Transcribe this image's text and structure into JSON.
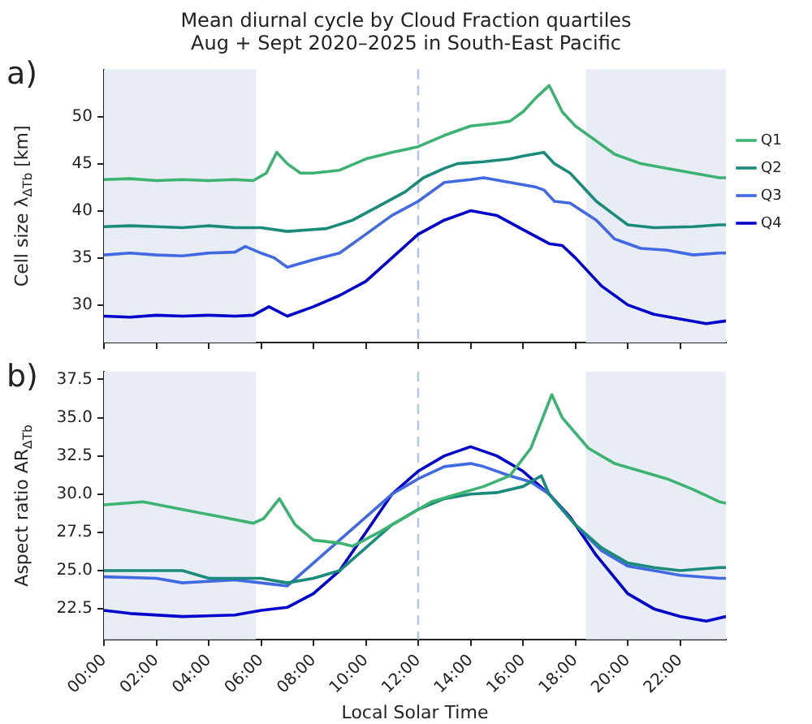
{
  "chart_data": [
    {
      "type": "line",
      "title": "Mean diurnal cycle by Cloud Fraction quartiles",
      "subtitle": "Aug + Sept 2020–2025 in South-East Pacific",
      "ylabel": "Cell size λ$_{ΔTb}$ [km]",
      "annotations": [
        "a)"
      ],
      "xlim": [
        0,
        23.75
      ],
      "xticks": [
        {
          "value": 0,
          "label": null
        },
        {
          "value": 2,
          "label": null
        },
        {
          "value": 4,
          "label": null
        },
        {
          "value": 6,
          "label": null
        },
        {
          "value": 8,
          "label": null
        },
        {
          "value": 10,
          "label": null
        },
        {
          "value": 12,
          "label": null
        },
        {
          "value": 14,
          "label": null
        },
        {
          "value": 16,
          "label": null
        },
        {
          "value": 18,
          "label": null
        },
        {
          "value": 20,
          "label": null
        },
        {
          "value": 22,
          "label": null
        }
      ],
      "ylim": [
        26,
        55
      ],
      "yticks": [
        30,
        35,
        40,
        45,
        50
      ],
      "tick_labels": "y",
      "grid": false,
      "legend": "right",
      "marker": "none",
      "line_style": "solid",
      "bands": [
        {
          "axis": "x",
          "from": 0,
          "to": 5.8,
          "color": "#e8edf5"
        },
        {
          "axis": "x",
          "from": 18.4,
          "to": 23.75,
          "color": "#e8edf5"
        }
      ],
      "ref_lines": [
        {
          "axis": "x",
          "value": 12,
          "color": "#b0c4e8",
          "line_style": "dashed"
        }
      ],
      "series": [
        {
          "name": "Q1",
          "color": "#3cb371",
          "x": [
            0,
            1,
            2,
            3,
            4,
            5,
            5.7,
            6.2,
            6.6,
            7,
            7.5,
            8,
            9,
            10,
            11,
            12,
            13,
            14,
            15,
            15.5,
            16,
            16.5,
            17,
            17.5,
            18,
            18.5,
            19.5,
            20.5,
            21.5,
            22.5,
            23.5,
            23.75
          ],
          "values": [
            43.3,
            43.4,
            43.2,
            43.3,
            43.2,
            43.3,
            43.2,
            44,
            46.2,
            45,
            44,
            44,
            44.3,
            45.5,
            46.2,
            46.8,
            48,
            49,
            49.3,
            49.5,
            50.5,
            52,
            53.3,
            50.5,
            49,
            48,
            46,
            45,
            44.5,
            44,
            43.5,
            43.5
          ]
        },
        {
          "name": "Q2",
          "color": "#1a8a7a",
          "x": [
            0,
            1,
            2,
            3,
            4,
            5,
            6,
            7,
            8,
            8.5,
            9.5,
            10.5,
            11.5,
            12.2,
            13,
            13.5,
            14.5,
            15.5,
            16,
            16.8,
            17.2,
            17.8,
            18.8,
            20,
            21,
            22.5,
            23.5,
            23.75
          ],
          "values": [
            38.3,
            38.4,
            38.3,
            38.2,
            38.4,
            38.2,
            38.2,
            37.8,
            38,
            38.1,
            39,
            40.5,
            42,
            43.5,
            44.5,
            45,
            45.2,
            45.5,
            45.8,
            46.2,
            45,
            44,
            41,
            38.5,
            38.2,
            38.3,
            38.5,
            38.5
          ]
        },
        {
          "name": "Q3",
          "color": "#4169e1",
          "x": [
            0,
            1,
            2,
            3,
            4,
            5,
            5.4,
            6,
            6.5,
            7,
            8,
            9,
            10,
            11,
            12,
            13,
            14,
            14.5,
            15.5,
            16.5,
            16.8,
            17.2,
            17.8,
            18.8,
            19.5,
            20.5,
            21.5,
            22.5,
            23.5,
            23.75
          ],
          "values": [
            35.3,
            35.5,
            35.3,
            35.2,
            35.5,
            35.6,
            36.2,
            35.5,
            35,
            34,
            34.8,
            35.5,
            37.5,
            39.5,
            41,
            43,
            43.3,
            43.5,
            43,
            42.5,
            42.2,
            41,
            40.8,
            39,
            37,
            36,
            35.8,
            35.3,
            35.5,
            35.5
          ]
        },
        {
          "name": "Q4",
          "color": "#0000cd",
          "x": [
            0,
            1,
            2,
            3,
            4,
            5,
            5.7,
            6.3,
            7,
            8,
            9,
            10,
            11,
            12,
            13,
            14,
            15,
            16,
            17,
            17.5,
            18,
            19,
            20,
            21,
            22,
            23,
            23.75
          ],
          "values": [
            28.8,
            28.7,
            28.9,
            28.8,
            28.9,
            28.8,
            28.9,
            29.8,
            28.8,
            29.8,
            31,
            32.5,
            35,
            37.5,
            39,
            40,
            39.5,
            38,
            36.5,
            36.3,
            35,
            32,
            30,
            29,
            28.5,
            28,
            28.3
          ]
        }
      ]
    },
    {
      "type": "line",
      "ylabel": "Aspect ratio AR$_{ΔTb}$",
      "xlabel": "Local Solar Time",
      "annotations": [
        "b)"
      ],
      "xlim": [
        0,
        23.75
      ],
      "xticks": [
        {
          "value": 0,
          "label": "00:00"
        },
        {
          "value": 2,
          "label": "02:00"
        },
        {
          "value": 4,
          "label": "04:00"
        },
        {
          "value": 6,
          "label": "06:00"
        },
        {
          "value": 8,
          "label": "08:00"
        },
        {
          "value": 10,
          "label": "10:00"
        },
        {
          "value": 12,
          "label": "12:00"
        },
        {
          "value": 14,
          "label": "14:00"
        },
        {
          "value": 16,
          "label": "16:00"
        },
        {
          "value": 18,
          "label": "18:00"
        },
        {
          "value": 20,
          "label": "20:00"
        },
        {
          "value": 22,
          "label": "22:00"
        }
      ],
      "ylim": [
        20.5,
        38
      ],
      "yticks": [
        22.5,
        {
          "value": 25,
          "label": "25.0"
        },
        27.5,
        {
          "value": 30,
          "label": "30.0"
        },
        32.5,
        {
          "value": 35,
          "label": "35.0"
        },
        37.5
      ],
      "grid": false,
      "marker": "none",
      "line_style": "solid",
      "bands": [
        {
          "axis": "x",
          "from": 0,
          "to": 5.8,
          "color": "#e8edf5"
        },
        {
          "axis": "x",
          "from": 18.4,
          "to": 23.75,
          "color": "#e8edf5"
        }
      ],
      "ref_lines": [
        {
          "axis": "x",
          "value": 12,
          "color": "#b0c4e8",
          "line_style": "dashed"
        }
      ],
      "series": [
        {
          "color": "#3cb371",
          "x": [
            0,
            1.5,
            3,
            4.5,
            5.7,
            6.1,
            6.7,
            7.3,
            8,
            9,
            9.5,
            10.5,
            11.5,
            12.5,
            13.5,
            14.5,
            15.5,
            16.3,
            17.1,
            17.5,
            18.5,
            19.5,
            20.5,
            21.5,
            22.5,
            23.5,
            23.75
          ],
          "values": [
            29.3,
            29.5,
            29,
            28.5,
            28.1,
            28.4,
            29.7,
            28,
            27,
            26.8,
            26.6,
            27.5,
            28.5,
            29.5,
            30,
            30.5,
            31.2,
            33,
            36.5,
            35,
            33,
            32,
            31.5,
            31,
            30.3,
            29.5,
            29.4
          ]
        },
        {
          "color": "#1a8a7a",
          "x": [
            0,
            3,
            4,
            6,
            7,
            8,
            9,
            10,
            11,
            12,
            13,
            14,
            15,
            16,
            16.7,
            17,
            18,
            19,
            20,
            21,
            22,
            23.5,
            23.75
          ],
          "values": [
            25,
            25,
            24.5,
            24.5,
            24.2,
            24.5,
            25,
            26.5,
            28,
            29,
            29.7,
            30,
            30.1,
            30.5,
            31.2,
            30,
            28,
            26.5,
            25.5,
            25.2,
            25,
            25.2,
            25.2
          ]
        },
        {
          "color": "#4169e1",
          "x": [
            0,
            2,
            3,
            5,
            6,
            7,
            8,
            9,
            10,
            11,
            12,
            13,
            14,
            14.5,
            15.5,
            16.3,
            17,
            18,
            19,
            20,
            21,
            22,
            23.5,
            23.75
          ],
          "values": [
            24.6,
            24.5,
            24.2,
            24.4,
            24.2,
            24,
            25.5,
            27,
            28.5,
            30,
            31,
            31.8,
            32,
            31.8,
            31.2,
            30.8,
            30,
            28,
            26.3,
            25.3,
            25,
            24.7,
            24.5,
            24.5
          ]
        },
        {
          "color": "#0000cd",
          "x": [
            0,
            1,
            3,
            5,
            6,
            7,
            8,
            9,
            10,
            11,
            12,
            13,
            14,
            15,
            16,
            17,
            17.8,
            18.8,
            20,
            21,
            22,
            23,
            23.75
          ],
          "values": [
            22.4,
            22.2,
            22,
            22.1,
            22.4,
            22.6,
            23.5,
            25,
            27.5,
            30,
            31.5,
            32.5,
            33.1,
            32.5,
            31.5,
            30,
            28.5,
            26,
            23.5,
            22.5,
            22,
            21.7,
            22
          ]
        }
      ]
    }
  ]
}
